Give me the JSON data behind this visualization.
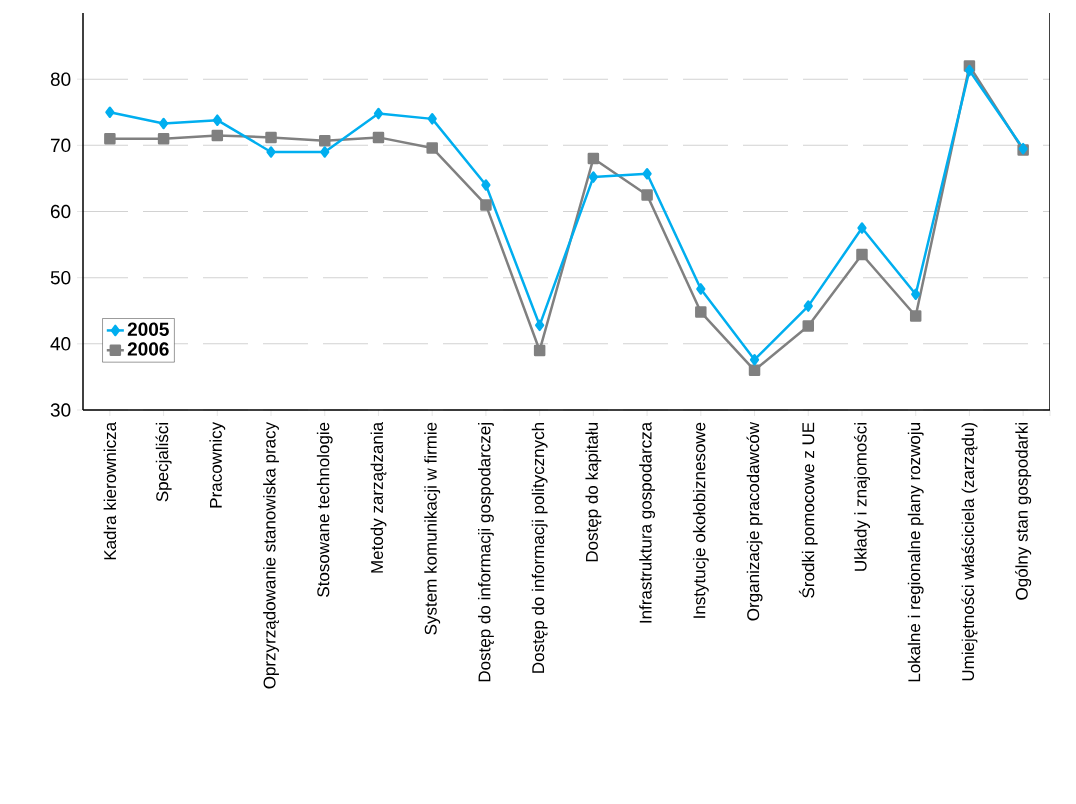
{
  "chart_data": {
    "type": "line",
    "categories": [
      "Kadra kierownicza",
      "Specjaliści",
      "Pracownicy",
      "Oprzyrządowanie stanowiska pracy",
      "Stosowane technologie",
      "Metody zarządzania",
      "System komunikacji w firmie",
      "Dostęp do informacji gospodarczej",
      "Dostęp do informacji politycznych",
      "Dostęp do kapitału",
      "Infrastruktura gospodarcza",
      "Instytucje okołobiznesowe",
      "Organizacje pracodawców",
      "Środki pomocowe z UE",
      "Układy i znajomości",
      "Lokalne i regionalne plany rozwoju",
      "Umiejętności właściciela (zarządu)",
      "Ogólny stan gospodarki"
    ],
    "series": [
      {
        "name": "2005",
        "color": "#00aeef",
        "marker": "diamond",
        "values": [
          75,
          73.3,
          73.8,
          69,
          69,
          74.8,
          74,
          64,
          42.8,
          65.2,
          65.7,
          48.3,
          37.6,
          45.7,
          57.5,
          47.5,
          81.3,
          69.5
        ]
      },
      {
        "name": "2006",
        "color": "#808080",
        "marker": "square",
        "values": [
          71,
          71,
          71.5,
          71.2,
          70.7,
          71.2,
          69.6,
          61,
          39,
          68,
          62.5,
          44.8,
          36,
          42.7,
          53.5,
          44.2,
          82,
          69.3
        ]
      }
    ],
    "ylim": [
      30,
      90
    ],
    "yticks": [
      30,
      40,
      50,
      60,
      70,
      80
    ],
    "grid": "y",
    "legend": "left"
  }
}
